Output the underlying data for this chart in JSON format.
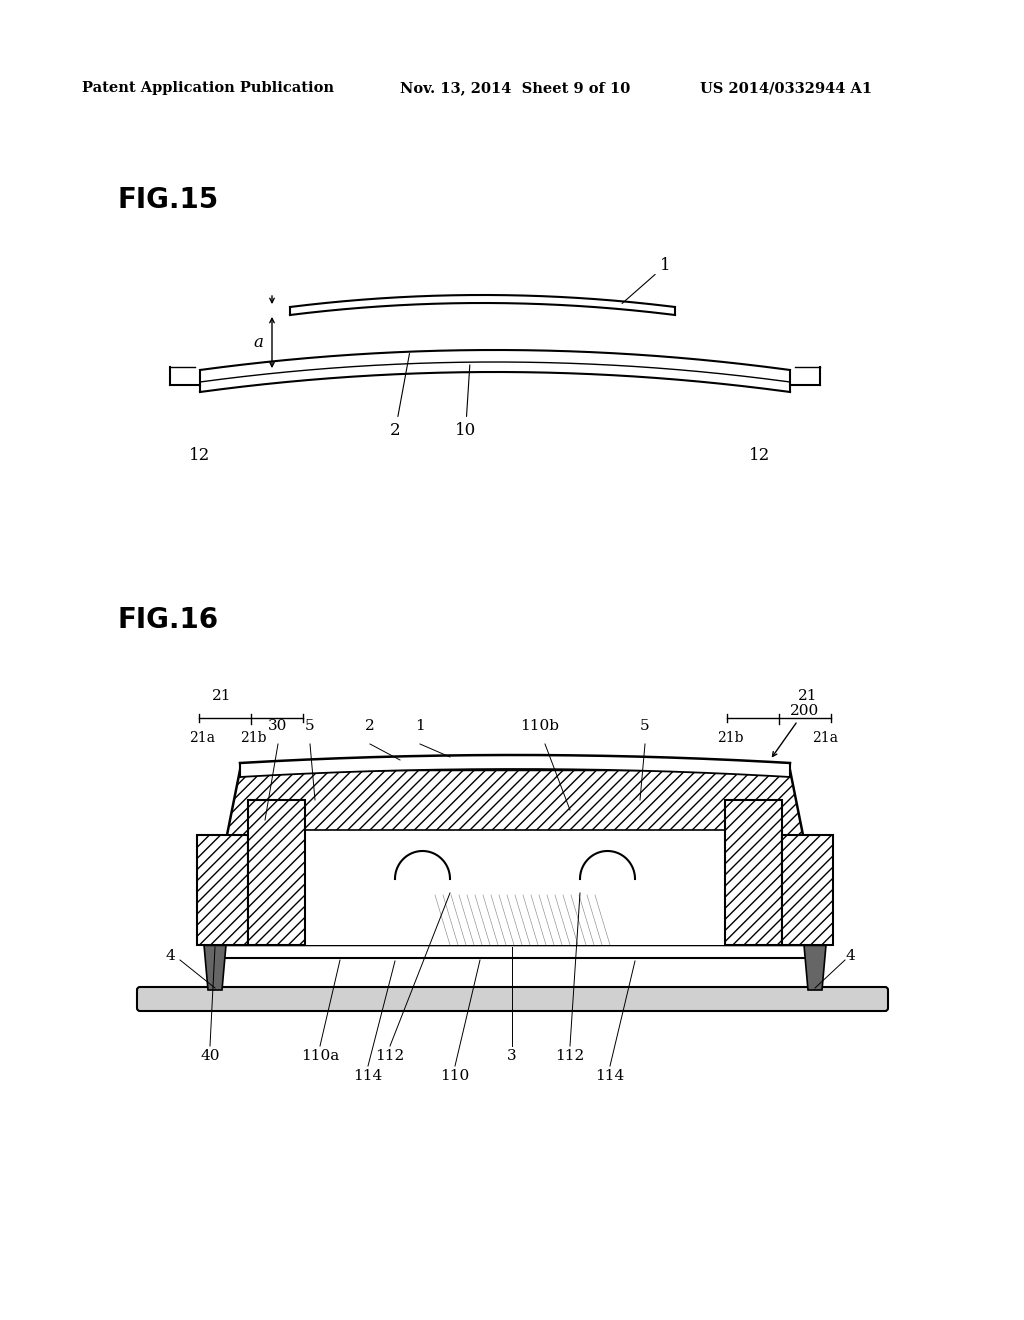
{
  "bg_color": "#ffffff",
  "header_left": "Patent Application Publication",
  "header_mid": "Nov. 13, 2014  Sheet 9 of 10",
  "header_right": "US 2014/0332944 A1",
  "fig15_label": "FIG.15",
  "fig16_label": "FIG.16"
}
